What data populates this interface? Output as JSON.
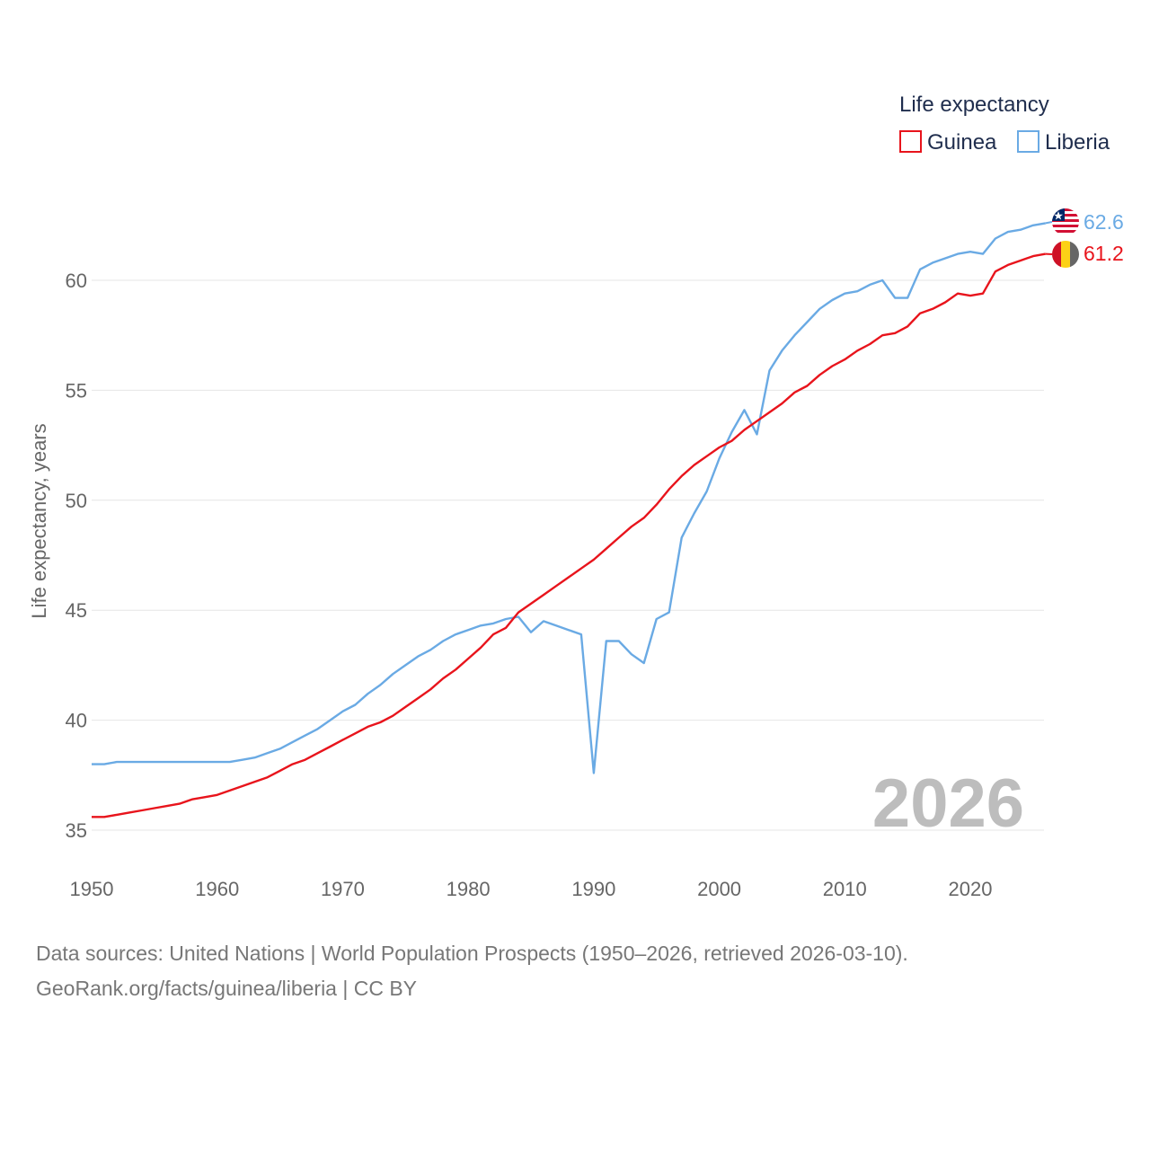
{
  "chart_data": {
    "type": "line",
    "title": "",
    "xlabel": "",
    "ylabel": "Life expectancy, years",
    "xlim": [
      1950,
      2026
    ],
    "ylim": [
      34.5,
      63
    ],
    "x_ticks": [
      "1950",
      "1960",
      "1970",
      "1980",
      "1990",
      "2000",
      "2010",
      "2020"
    ],
    "y_ticks": [
      "35",
      "40",
      "45",
      "50",
      "55",
      "60"
    ],
    "legend_title": "Life expectancy",
    "year_label": "2026",
    "series": [
      {
        "name": "Guinea",
        "color": "#e8141c",
        "end_label": "61.2",
        "x": [
          1950,
          1951,
          1952,
          1953,
          1954,
          1955,
          1956,
          1957,
          1958,
          1959,
          1960,
          1961,
          1962,
          1963,
          1964,
          1965,
          1966,
          1967,
          1968,
          1969,
          1970,
          1971,
          1972,
          1973,
          1974,
          1975,
          1976,
          1977,
          1978,
          1979,
          1980,
          1981,
          1982,
          1983,
          1984,
          1985,
          1986,
          1987,
          1988,
          1989,
          1990,
          1991,
          1992,
          1993,
          1994,
          1995,
          1996,
          1997,
          1998,
          1999,
          2000,
          2001,
          2002,
          2003,
          2004,
          2005,
          2006,
          2007,
          2008,
          2009,
          2010,
          2011,
          2012,
          2013,
          2014,
          2015,
          2016,
          2017,
          2018,
          2019,
          2020,
          2021,
          2022,
          2023,
          2024,
          2025,
          2026
        ],
        "values": [
          35.6,
          35.6,
          35.7,
          35.8,
          35.9,
          36.0,
          36.1,
          36.2,
          36.4,
          36.5,
          36.6,
          36.8,
          37.0,
          37.2,
          37.4,
          37.7,
          38.0,
          38.2,
          38.5,
          38.8,
          39.1,
          39.4,
          39.7,
          39.9,
          40.2,
          40.6,
          41.0,
          41.4,
          41.9,
          42.3,
          42.8,
          43.3,
          43.9,
          44.2,
          44.9,
          45.3,
          45.7,
          46.1,
          46.5,
          46.9,
          47.3,
          47.8,
          48.3,
          48.8,
          49.2,
          49.8,
          50.5,
          51.1,
          51.6,
          52.0,
          52.4,
          52.7,
          53.2,
          53.6,
          54.0,
          54.4,
          54.9,
          55.2,
          55.7,
          56.1,
          56.4,
          56.8,
          57.1,
          57.5,
          57.6,
          57.9,
          58.5,
          58.7,
          59.0,
          59.4,
          59.3,
          59.4,
          60.4,
          60.7,
          60.9,
          61.1,
          61.2
        ]
      },
      {
        "name": "Liberia",
        "color": "#6aaae4",
        "end_label": "62.6",
        "x": [
          1950,
          1951,
          1952,
          1953,
          1954,
          1955,
          1956,
          1957,
          1958,
          1959,
          1960,
          1961,
          1962,
          1963,
          1964,
          1965,
          1966,
          1967,
          1968,
          1969,
          1970,
          1971,
          1972,
          1973,
          1974,
          1975,
          1976,
          1977,
          1978,
          1979,
          1980,
          1981,
          1982,
          1983,
          1984,
          1985,
          1986,
          1987,
          1988,
          1989,
          1990,
          1991,
          1992,
          1993,
          1994,
          1995,
          1996,
          1997,
          1998,
          1999,
          2000,
          2001,
          2002,
          2003,
          2004,
          2005,
          2006,
          2007,
          2008,
          2009,
          2010,
          2011,
          2012,
          2013,
          2014,
          2015,
          2016,
          2017,
          2018,
          2019,
          2020,
          2021,
          2022,
          2023,
          2024,
          2025,
          2026
        ],
        "values": [
          38.0,
          38.0,
          38.1,
          38.1,
          38.1,
          38.1,
          38.1,
          38.1,
          38.1,
          38.1,
          38.1,
          38.1,
          38.2,
          38.3,
          38.5,
          38.7,
          39.0,
          39.3,
          39.6,
          40.0,
          40.4,
          40.7,
          41.2,
          41.6,
          42.1,
          42.5,
          42.9,
          43.2,
          43.6,
          43.9,
          44.1,
          44.3,
          44.4,
          44.6,
          44.7,
          44.0,
          44.5,
          44.3,
          44.1,
          43.9,
          37.6,
          43.6,
          43.6,
          43.0,
          42.6,
          44.6,
          44.9,
          48.3,
          49.4,
          50.4,
          51.9,
          53.1,
          54.1,
          53.0,
          55.9,
          56.8,
          57.5,
          58.1,
          58.7,
          59.1,
          59.4,
          59.5,
          59.8,
          60.0,
          59.2,
          59.2,
          60.5,
          60.8,
          61.0,
          61.2,
          61.3,
          61.2,
          61.9,
          62.2,
          62.3,
          62.5,
          62.6
        ]
      }
    ]
  },
  "source": {
    "line1": "Data sources: United Nations | World Population Prospects (1950–2026, retrieved 2026-03-10).",
    "line2": "GeoRank.org/facts/guinea/liberia | CC BY"
  }
}
